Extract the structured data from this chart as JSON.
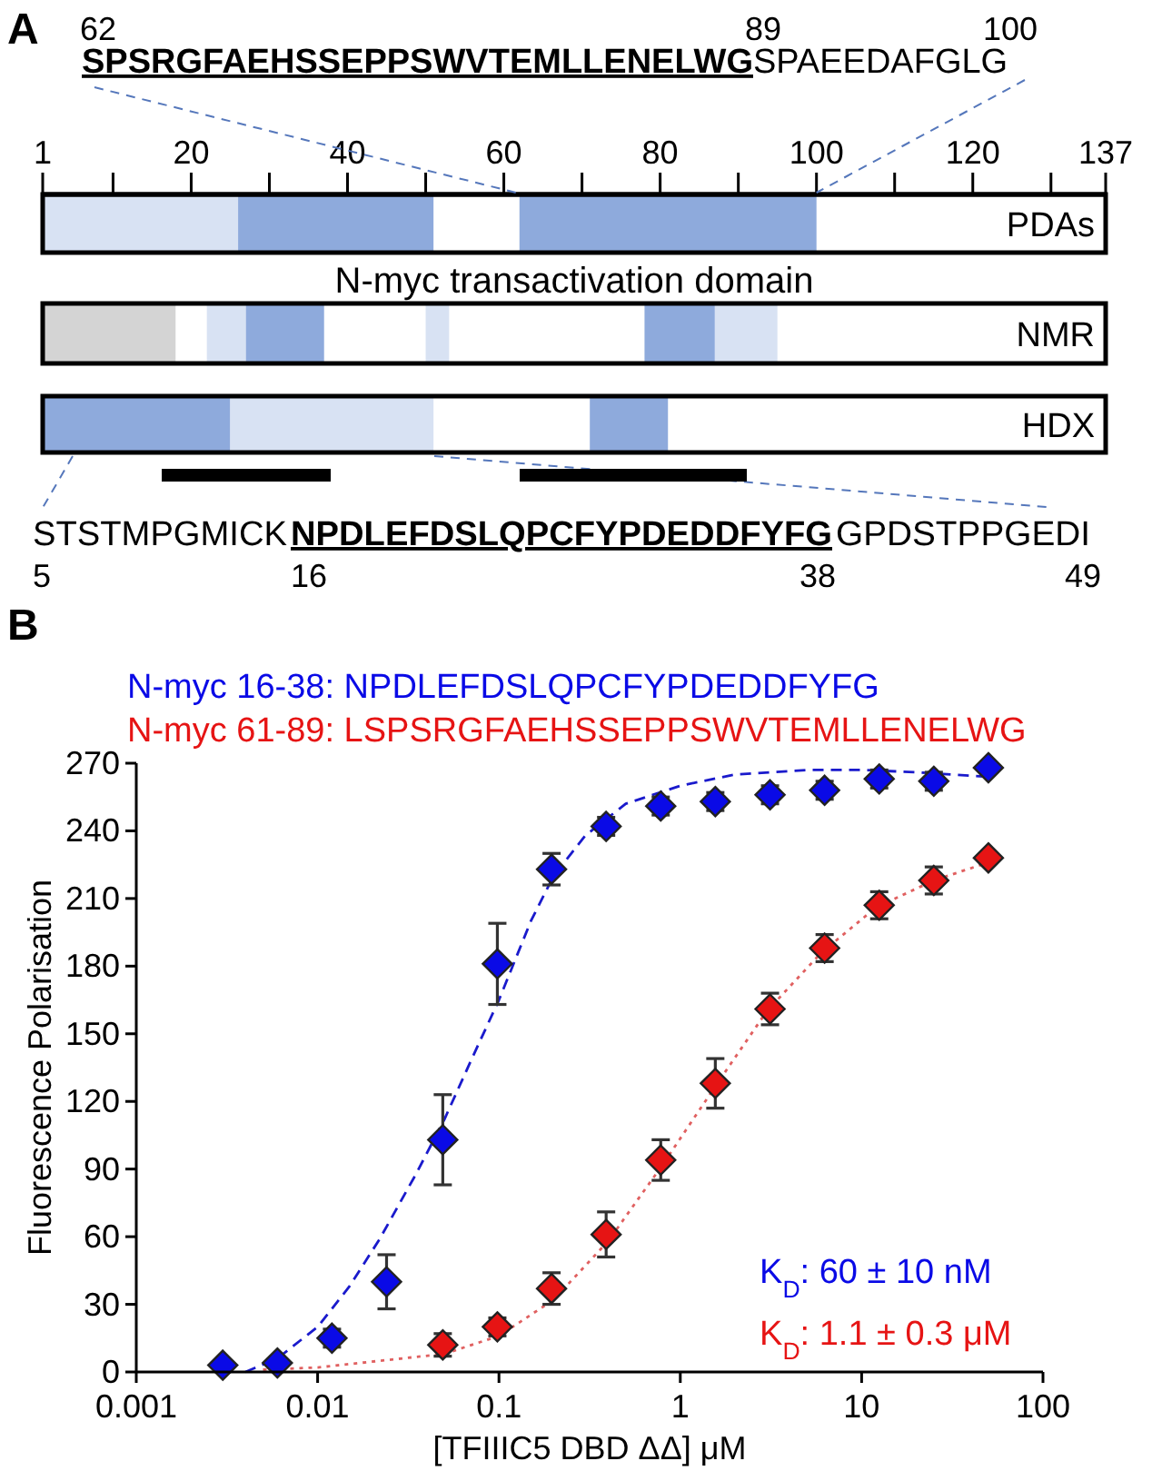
{
  "chart_data": [
    {
      "type": "bar",
      "orientation": "horizontal",
      "categories": [
        "PDAs",
        "NMR",
        "HDX"
      ],
      "xlim": [
        1,
        137
      ],
      "xticks": [
        1,
        {
          "value": 10,
          "label": null
        },
        20,
        {
          "value": 30,
          "label": null
        },
        40,
        {
          "value": 50,
          "label": null
        },
        60,
        {
          "value": 70,
          "label": null
        },
        80,
        {
          "value": 90,
          "label": null
        },
        100,
        {
          "value": 110,
          "label": null
        },
        120,
        {
          "value": 130,
          "label": null
        },
        137
      ],
      "series": [
        {
          "values": [
            25,
            17,
            24
          ],
          "base": [
            1,
            1,
            1
          ],
          "colors": [
            "#d8e2f3",
            "#d4d4d4",
            "#8eaadc"
          ]
        },
        {
          "values": [
            25,
            5,
            26
          ],
          "base": [
            26,
            22,
            25
          ],
          "colors": [
            "#8eaadc",
            "#d8e2f3",
            "#d8e2f3"
          ]
        },
        {
          "values": [
            38,
            10,
            10
          ],
          "base": [
            62,
            27,
            71
          ],
          "colors": [
            "#8eaadc",
            "#8eaadc",
            "#8eaadc"
          ]
        },
        {
          "values": [
            null,
            3,
            null
          ],
          "base": [
            null,
            50,
            null
          ],
          "colors": [
            null,
            "#d8e2f3",
            null
          ]
        },
        {
          "values": [
            null,
            9,
            null
          ],
          "base": [
            null,
            78,
            null
          ],
          "colors": [
            null,
            "#8eaadc",
            null
          ]
        },
        {
          "values": [
            null,
            8,
            null
          ],
          "base": [
            null,
            87,
            null
          ],
          "colors": [
            null,
            "#d8e2f3",
            null
          ]
        }
      ],
      "annotations": [
        "A",
        "62",
        "89",
        {
          "text": "100",
          "x": 100
        },
        "SPSRGFAEHSSEPPSWVTEMLLENELWG",
        "SPAEEDAFGLG",
        "N-myc transactivation domain",
        "STSTMPGMICK",
        "NPDLEFDSLQPCFYPDEDDFYFG",
        "GPDSTPPGEDI",
        "5",
        "16",
        "38",
        "49"
      ]
    },
    {
      "type": "scatter",
      "xlabel": "[TFIIIC5 DBD ΔΔ] μM",
      "ylabel": "Fluorescence Polarisation",
      "log": "x",
      "xlim": [
        0.001,
        100
      ],
      "xticks": [
        0.001,
        0.01,
        0.1,
        1,
        10,
        100
      ],
      "ylim": [
        0,
        270
      ],
      "yticks": [
        0,
        30,
        60,
        90,
        120,
        150,
        180,
        210,
        240,
        270
      ],
      "marker": "diamond",
      "legend": "top left",
      "annotations": [
        "B",
        "K$_{D}$: 60 ± 10 nM",
        "K$_{D}$: 1.1 ± 0.3 μM"
      ],
      "series": [
        {
          "name": "N-myc 16-38: NPDLEFDSLQPCFYPDEDDFYFG",
          "color": "#0a0ae6",
          "x": [
            0.003,
            0.006,
            0.012,
            0.024,
            0.049,
            0.098,
            0.195,
            0.39,
            0.78,
            1.56,
            3.125,
            6.25,
            12.5,
            25,
            50
          ],
          "values": [
            3,
            4,
            15,
            40,
            103,
            181,
            223,
            242,
            251,
            253,
            256,
            258,
            263,
            262,
            268
          ],
          "errors": [
            2,
            2,
            4,
            12,
            20,
            18,
            7,
            4,
            4,
            4,
            4,
            4,
            4,
            4,
            null
          ]
        },
        {
          "name": "N-myc 61-89: LSPSRGFAEHSSEPPSWVTEMLLENELWG",
          "color": "#e61414",
          "x": [
            0.049,
            0.098,
            0.195,
            0.39,
            0.78,
            1.56,
            3.125,
            6.25,
            12.5,
            25,
            50
          ],
          "values": [
            12,
            20,
            37,
            61,
            94,
            128,
            161,
            188,
            207,
            218,
            228
          ],
          "errors": [
            5,
            4,
            7,
            10,
            9,
            11,
            7,
            6,
            6,
            6,
            null
          ]
        },
        {
          "type": "line",
          "color": "#1a1acc",
          "line_style": "dashed",
          "marker": "none",
          "x": [
            0.004,
            0.006,
            0.01,
            0.015,
            0.022,
            0.035,
            0.05,
            0.07,
            0.1,
            0.15,
            0.2,
            0.3,
            0.5,
            1,
            2,
            5,
            10,
            20,
            50
          ],
          "values": [
            0,
            6,
            20,
            38,
            59,
            88,
            112,
            138,
            165,
            200,
            220,
            238,
            252,
            260,
            265,
            267,
            267,
            266,
            264
          ]
        },
        {
          "type": "line",
          "color": "#e06060",
          "line_style": "dotted",
          "marker": "none",
          "x": [
            0.005,
            0.01,
            0.05,
            0.1,
            0.2,
            0.4,
            0.8,
            1.6,
            3,
            6,
            12,
            25,
            50
          ],
          "values": [
            1,
            2,
            8,
            16,
            32,
            58,
            92,
            128,
            160,
            186,
            206,
            218,
            226
          ]
        }
      ]
    }
  ]
}
